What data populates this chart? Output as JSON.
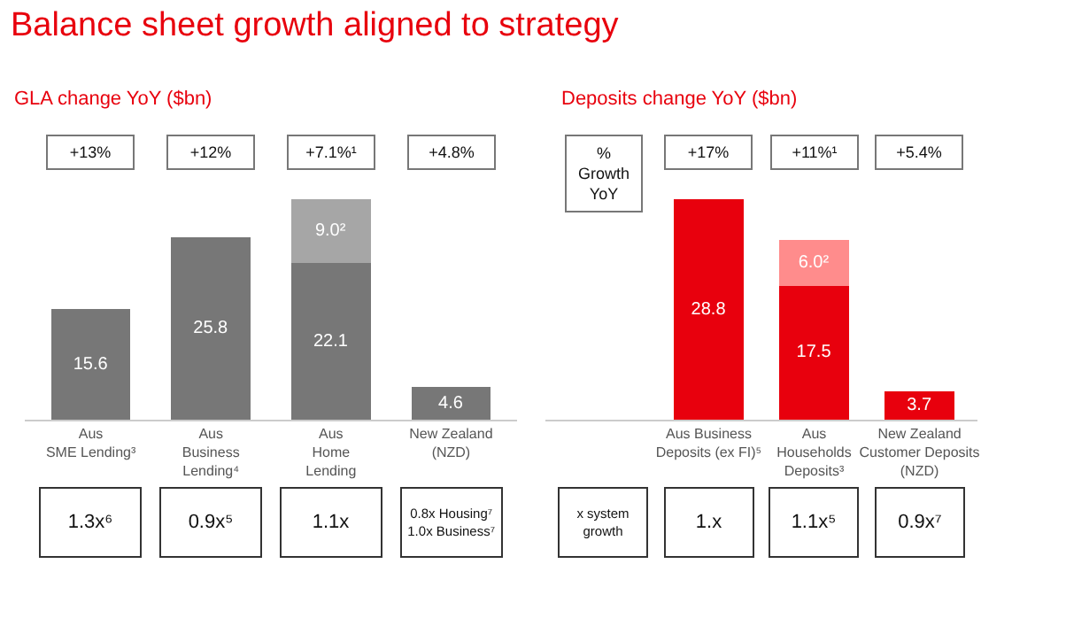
{
  "chart_data": [
    {
      "type": "bar",
      "title": "Balance sheet growth aligned to strategy",
      "subtitle": "GLA change YoY ($bn)",
      "stacked": true,
      "categories": [
        "Aus\nSME Lending³",
        "Aus\nBusiness\nLending⁴",
        "Aus\nHome\nLending",
        "New Zealand\n(NZD)"
      ],
      "series": [
        {
          "color": "#777777",
          "values": [
            15.6,
            25.8,
            22.1,
            4.6
          ],
          "value_labels": [
            "15.6",
            "25.8",
            "22.1",
            "4.6"
          ]
        },
        {
          "color": "#a6a6a6",
          "values": [
            null,
            null,
            9.0,
            null
          ],
          "value_labels": [
            null,
            null,
            "9.0²",
            null
          ]
        }
      ],
      "annotations": [
        "+13%",
        "+12%",
        "+7.1%¹",
        "+4.8%",
        "1.3x⁶",
        "0.9x⁵",
        "1.1x",
        "0.8x Housing⁷\n1.0x Business⁷"
      ]
    },
    {
      "type": "bar",
      "title": "Deposits change YoY ($bn)",
      "stacked": true,
      "categories": [
        "Aus Business\nDeposits (ex FI)⁵",
        "Aus\nHouseholds\nDeposits³",
        "New Zealand\nCustomer Deposits\n(NZD)"
      ],
      "series": [
        {
          "color": "#e8000d",
          "values": [
            28.8,
            17.5,
            3.7
          ],
          "value_labels": [
            "28.8",
            "17.5",
            "3.7"
          ]
        },
        {
          "color": "#ff8c8c",
          "values": [
            null,
            6.0,
            null
          ],
          "value_labels": [
            null,
            "6.0²",
            null
          ]
        }
      ],
      "annotations": [
        "%\nGrowth\nYoY",
        "+17%",
        "+11%¹",
        "+5.4%",
        "x system\ngrowth",
        "1.x",
        "1.1x⁵",
        "0.9x⁷"
      ]
    }
  ]
}
